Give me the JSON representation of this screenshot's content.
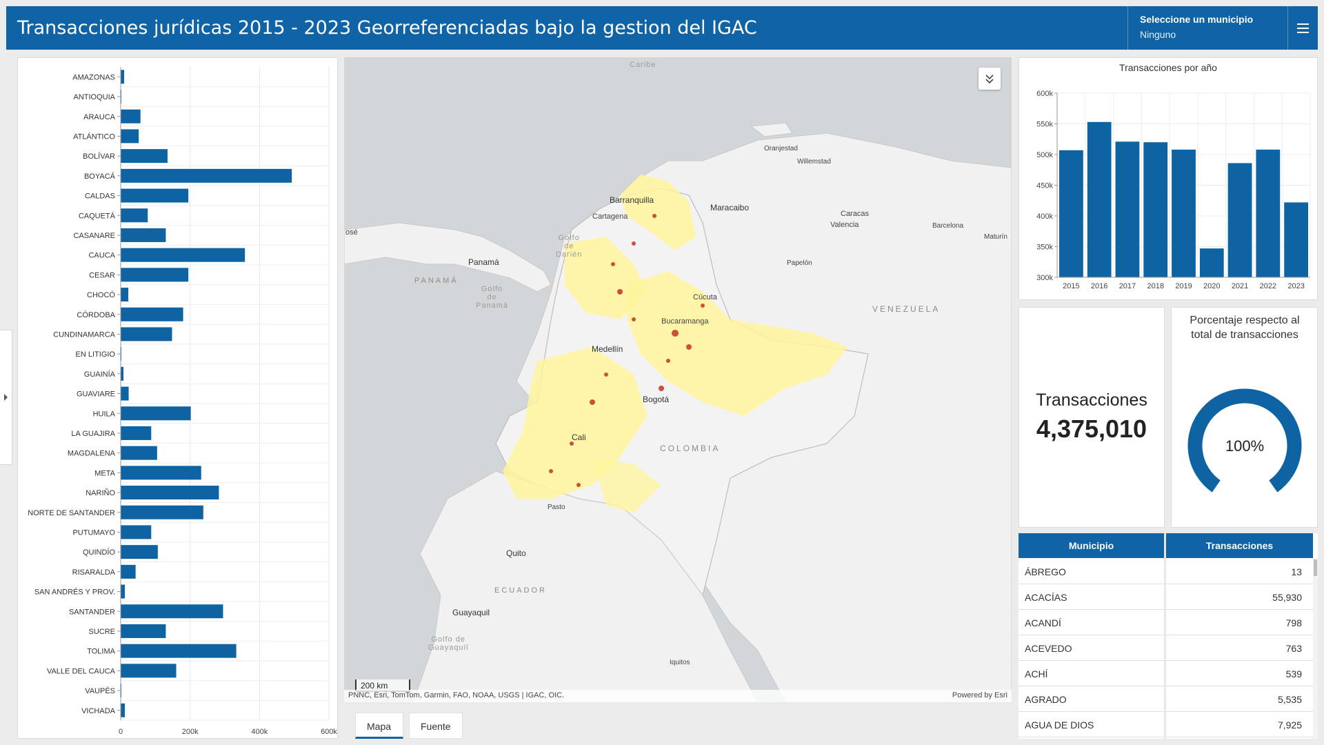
{
  "header": {
    "title": "Transacciones jurídicas 2015 - 2023 Georreferenciadas bajo la gestion del IGAC",
    "municipio_label": "Seleccione un municipio",
    "municipio_value": "Ninguno"
  },
  "colors": {
    "primary": "#1063a4",
    "bar": "#0e64a3",
    "gauge": "#0e64a3",
    "density_low": "#fff5a0",
    "density_high": "#c0281a"
  },
  "icons": [
    "hamburger-menu-icon",
    "expand-chevron-icon",
    "panel-toggle-arrow-icon"
  ],
  "dept_chart": {
    "chart_data": {
      "type": "bar",
      "orientation": "horizontal",
      "categories": [
        "AMAZONAS",
        "ANTIOQUIA",
        "ARAUCA",
        "ATLÁNTICO",
        "BOLÍVAR",
        "BOYACÁ",
        "CALDAS",
        "CAQUETÁ",
        "CASANARE",
        "CAUCA",
        "CESAR",
        "CHOCÓ",
        "CÓRDOBA",
        "CUNDINAMARCA",
        "EN LITIGIO",
        "GUAINÍA",
        "GUAVIARE",
        "HUILA",
        "LA GUAJIRA",
        "MAGDALENA",
        "META",
        "NARIÑO",
        "NORTE DE SANTANDER",
        "PUTUMAYO",
        "QUINDÍO",
        "RISARALDA",
        "SAN ANDRÉS Y PROV.",
        "SANTANDER",
        "SUCRE",
        "TOLIMA",
        "VALLE DEL CAUCA",
        "VAUPÉS",
        "VICHADA"
      ],
      "values": [
        10000,
        1500,
        57000,
        52000,
        135000,
        493000,
        195000,
        78000,
        130000,
        358000,
        195000,
        22000,
        180000,
        148000,
        500,
        8000,
        23000,
        202000,
        88000,
        105000,
        232000,
        283000,
        238000,
        88000,
        107000,
        43000,
        12000,
        295000,
        130000,
        333000,
        160000,
        2000,
        12000
      ],
      "xlim": [
        0,
        600000
      ],
      "xticks": [
        "0",
        "200k",
        "400k",
        "600k"
      ]
    }
  },
  "map": {
    "labels": {
      "caribe": "Caribe",
      "ose": "osé",
      "oranjestad": "Oranjestad",
      "willemstad": "Willemstad",
      "barranquilla": "Barranquilla",
      "cartagena": "Cartagena",
      "maracaibo": "Maracaibo",
      "caracas": "Caracas",
      "valencia": "Valencia",
      "barcelona": "Barcelona",
      "maturin": "Maturín",
      "panama_city": "Panamá",
      "panama_country": "PANAMÁ",
      "golfo_darien": "Golfo\nde\nDarién",
      "golfo_panama": "Golfo\nde\nPanamá",
      "papelon": "Papelón",
      "cucuta": "Cúcuta",
      "bucaramanga": "Bucaramanga",
      "venezuela": "VENEZUELA",
      "medellin": "Medellín",
      "bogota": "Bogotá",
      "colombia": "COLOMBIA",
      "cali": "Cali",
      "pasto": "Pasto",
      "quito": "Quito",
      "ecuador": "ECUADOR",
      "guayaquil": "Guayaquil",
      "golfo_guayaquil": "Golfo de\nGuayaquil",
      "iquitos": "Iquitos"
    },
    "scalebar": "200 km",
    "attribution": "PNNC, Esri, TomTom, Garmin, FAO, NOAA, USGS | IGAC, OIC.",
    "powered_by": "Powered by Esri"
  },
  "tabs": [
    {
      "label": "Mapa",
      "active": true
    },
    {
      "label": "Fuente",
      "active": false
    }
  ],
  "year_chart": {
    "chart_data": {
      "type": "bar",
      "title": "Transacciones por año",
      "categories": [
        "2015",
        "2016",
        "2017",
        "2018",
        "2019",
        "2020",
        "2021",
        "2022",
        "2023"
      ],
      "values": [
        507000,
        553000,
        521000,
        520000,
        508000,
        347000,
        486000,
        508000,
        422000
      ],
      "ylim": [
        300000,
        600000
      ],
      "yticks": [
        "300k",
        "350k",
        "400k",
        "450k",
        "500k",
        "550k",
        "600k"
      ]
    }
  },
  "kpi": {
    "title": "Transacciones",
    "value": "4,375,010"
  },
  "gauge": {
    "title_line1": "Porcentaje respecto al",
    "title_line2": "total de transacciones",
    "value_text": "100%",
    "fraction": 1.0
  },
  "table": {
    "headers": [
      "Municipio",
      "Transacciones"
    ],
    "rows": [
      [
        "ÁBREGO",
        "13"
      ],
      [
        "ACACÍAS",
        "55,930"
      ],
      [
        "ACANDÍ",
        "798"
      ],
      [
        "ACEVEDO",
        "763"
      ],
      [
        "ACHÍ",
        "539"
      ],
      [
        "AGRADO",
        "5,535"
      ],
      [
        "AGUA DE DIOS",
        "7,925"
      ]
    ]
  }
}
